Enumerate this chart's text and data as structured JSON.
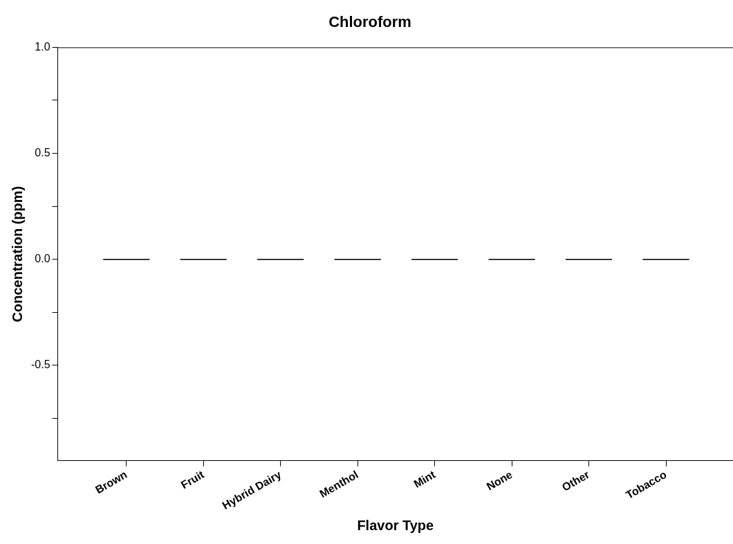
{
  "chart_data": {
    "type": "box",
    "title": "Chloroform",
    "xlabel": "Flavor Type",
    "ylabel": "Concentration (ppm)",
    "categories": [
      "Brown",
      "Fruit",
      "Hybrid Dairy",
      "Menthol",
      "Mint",
      "None",
      "Other",
      "Tobacco"
    ],
    "boxes": [
      {
        "low": 0,
        "q1": 0,
        "median": 0,
        "q3": 0,
        "high": 0
      },
      {
        "low": 0,
        "q1": 0,
        "median": 0,
        "q3": 0,
        "high": 0
      },
      {
        "low": 0,
        "q1": 0,
        "median": 0,
        "q3": 0,
        "high": 0
      },
      {
        "low": 0,
        "q1": 0,
        "median": 0,
        "q3": 0,
        "high": 0
      },
      {
        "low": 0,
        "q1": 0,
        "median": 0,
        "q3": 0,
        "high": 0
      },
      {
        "low": 0,
        "q1": 0,
        "median": 0,
        "q3": 0,
        "high": 0
      },
      {
        "low": 0,
        "q1": 0,
        "median": 0,
        "q3": 0,
        "high": 0
      },
      {
        "low": 0,
        "q1": 0,
        "median": 0,
        "q3": 0,
        "high": 0
      }
    ],
    "ylim": [
      -0.95,
      1.0
    ],
    "yticks": [
      {
        "value": -0.75,
        "label": null
      },
      {
        "value": -0.5,
        "label": "-0.5"
      },
      {
        "value": -0.25,
        "label": null
      },
      {
        "value": 0,
        "label": "0.0"
      },
      {
        "value": 0.25,
        "label": null
      },
      {
        "value": 0.5,
        "label": "0.5"
      },
      {
        "value": 0.75,
        "label": null
      },
      {
        "value": 1,
        "label": "1.0"
      }
    ],
    "grid": false,
    "legend": false
  }
}
